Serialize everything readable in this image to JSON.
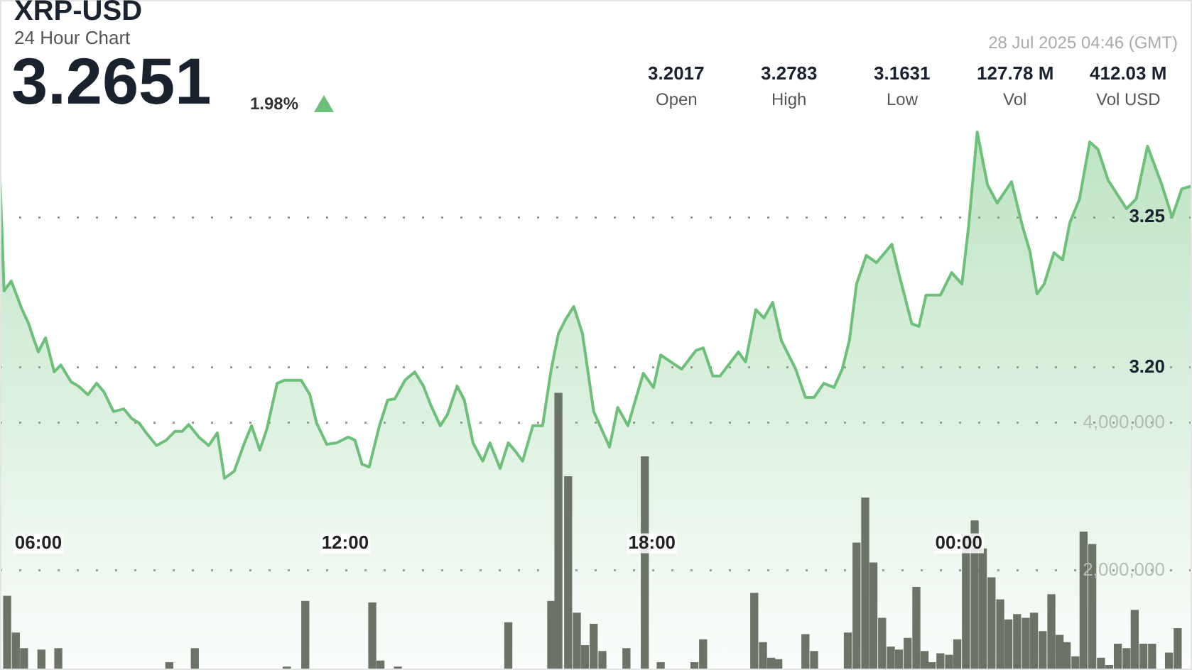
{
  "chart_data": {
    "type": "area",
    "title": "XRP-USD",
    "subtitle": "24 Hour Chart",
    "annotations": [
      "3.2651",
      "1.98%",
      "28 Jul 2025 04:46 (GMT)",
      "3.2017",
      "Open",
      "3.2783",
      "High",
      "3.1631",
      "Low",
      "127.78 M",
      "Vol",
      "412.03 M",
      "Vol USD"
    ],
    "x": [
      5.25,
      5.33,
      5.47,
      5.67,
      5.81,
      5.92,
      6.0,
      6.14,
      6.31,
      6.44,
      6.64,
      6.78,
      6.97,
      7.14,
      7.28,
      7.47,
      7.67,
      7.83,
      7.97,
      8.11,
      8.31,
      8.5,
      8.67,
      8.81,
      8.94,
      9.14,
      9.33,
      9.5,
      9.64,
      9.83,
      10.03,
      10.17,
      10.33,
      10.47,
      10.67,
      10.81,
      11.14,
      11.31,
      11.44,
      11.64,
      11.83,
      12.06,
      12.19,
      12.33,
      12.47,
      12.67,
      12.83,
      12.97,
      13.17,
      13.36,
      13.53,
      13.67,
      13.86,
      14.0,
      14.19,
      14.33,
      14.5,
      14.69,
      14.83,
      15.03,
      15.19,
      15.33,
      15.47,
      15.67,
      15.86,
      16.03,
      16.17,
      16.31,
      16.47,
      16.64,
      16.86,
      17.17,
      17.33,
      17.53,
      17.83,
      18.03,
      18.17,
      18.58,
      18.86,
      19.0,
      19.19,
      19.33,
      19.69,
      19.83,
      20.03,
      20.19,
      20.36,
      20.53,
      20.81,
      21.0,
      21.17,
      21.36,
      21.56,
      21.72,
      21.86,
      22.0,
      22.19,
      22.39,
      22.69,
      22.83,
      23.08,
      23.22,
      23.36,
      23.64,
      23.86,
      24.06,
      24.19,
      24.36,
      24.56,
      24.75,
      25.03,
      25.25,
      25.39,
      25.53,
      25.67,
      25.86,
      26.03,
      26.17,
      26.36,
      26.56,
      26.72,
      26.92,
      27.28,
      27.47,
      27.69,
      27.97,
      28.17,
      28.36,
      28.56
    ],
    "xlim": [
      5.25,
      28.56
    ],
    "xticks": [
      {
        "value": 6,
        "label": "06:00"
      },
      {
        "value": 12,
        "label": "12:00"
      },
      {
        "value": 18,
        "label": "18:00"
      },
      {
        "value": 24,
        "label": "00:00"
      }
    ],
    "ylim": [
      3.0995,
      3.3222
    ],
    "yticks": [
      {
        "value": 3.2,
        "label": "3.20"
      },
      {
        "value": 3.25,
        "label": "3.25"
      }
    ],
    "y2lim": [
      650000,
      9730000
    ],
    "y2ticks": [
      {
        "value": 2000000,
        "label": "2,000,000"
      },
      {
        "value": 4000000,
        "label": "4,000,000"
      }
    ],
    "grid": "y",
    "legend": false,
    "marker": "none",
    "line_style": "solid",
    "series": [
      {
        "color": "#6cc07a",
        "values": [
          3.263,
          3.2255,
          3.2288,
          3.2198,
          3.2146,
          3.209,
          3.2052,
          3.2099,
          3.1986,
          3.2009,
          3.1953,
          3.1939,
          3.191,
          3.1948,
          3.192,
          3.1854,
          3.1863,
          3.183,
          3.1816,
          3.1783,
          3.1741,
          3.1759,
          3.1788,
          3.1788,
          3.1811,
          3.1769,
          3.1741,
          3.1783,
          3.1632,
          3.1656,
          3.175,
          3.1807,
          3.1726,
          3.1797,
          3.1948,
          3.1958,
          3.1958,
          3.191,
          3.1816,
          3.1745,
          3.175,
          3.1769,
          3.1759,
          3.1679,
          3.167,
          3.1807,
          3.1892,
          3.1896,
          3.1958,
          3.1986,
          3.1939,
          3.1877,
          3.1807,
          3.1844,
          3.1939,
          3.1892,
          3.175,
          3.1689,
          3.175,
          3.1665,
          3.175,
          3.1722,
          3.1689,
          3.1807,
          3.1807,
          3.1995,
          3.2113,
          3.216,
          3.2203,
          3.2113,
          3.1854,
          3.1736,
          3.1868,
          3.1807,
          3.1981,
          3.1934,
          3.2042,
          3.1995,
          3.2057,
          3.2066,
          3.1972,
          3.1972,
          3.2052,
          3.2019,
          3.2193,
          3.2165,
          3.2217,
          3.209,
          3.1995,
          3.1901,
          3.1901,
          3.1948,
          3.1934,
          3.1995,
          3.209,
          3.2278,
          3.2373,
          3.2349,
          3.241,
          3.2311,
          3.2146,
          3.2137,
          3.2241,
          3.2241,
          3.2316,
          3.2278,
          3.2467,
          3.2783,
          3.2608,
          3.2547,
          3.2618,
          3.2467,
          3.2387,
          3.2245,
          3.2278,
          3.2382,
          3.2358,
          3.2481,
          3.2561,
          3.275,
          3.2726,
          3.2623,
          3.2528,
          3.2561,
          3.2736,
          3.2608,
          3.25,
          3.2594,
          3.2604
        ]
      },
      {
        "type": "bar",
        "axis": "y2",
        "color": "#6b7366",
        "x": [
          5.39,
          5.56,
          5.72,
          6.06,
          6.39,
          8.56,
          9.06,
          10.86,
          11.22,
          12.53,
          12.69,
          13.03,
          15.19,
          16.03,
          16.17,
          16.36,
          16.53,
          16.69,
          16.86,
          17.03,
          17.5,
          17.86,
          18.17,
          18.83,
          19.0,
          20.0,
          20.17,
          20.33,
          20.47,
          21.0,
          21.17,
          21.83,
          22.0,
          22.17,
          22.33,
          22.5,
          22.67,
          22.83,
          23.0,
          23.17,
          23.33,
          23.47,
          23.64,
          23.81,
          23.97,
          24.14,
          24.31,
          24.47,
          24.64,
          24.81,
          24.97,
          25.14,
          25.31,
          25.47,
          25.64,
          25.81,
          25.97,
          26.11,
          26.28,
          26.44,
          26.61,
          26.78,
          26.94,
          27.11,
          27.28,
          27.44,
          27.61,
          27.78,
          28.11,
          28.28
        ],
        "values": [
          1650000,
          1150000,
          940000,
          920000,
          940000,
          750000,
          940000,
          690000,
          1580000,
          1560000,
          770000,
          690000,
          1290000,
          1580000,
          4400000,
          3270000,
          1420000,
          980000,
          1270000,
          900000,
          940000,
          3540000,
          750000,
          750000,
          1060000,
          1690000,
          1020000,
          810000,
          790000,
          1130000,
          900000,
          1150000,
          2370000,
          2980000,
          2100000,
          1350000,
          960000,
          920000,
          1080000,
          1770000,
          900000,
          750000,
          870000,
          850000,
          1060000,
          2480000,
          2670000,
          2290000,
          1900000,
          1600000,
          1330000,
          1400000,
          1350000,
          1420000,
          1170000,
          1670000,
          1120000,
          1020000,
          830000,
          2520000,
          2350000,
          810000,
          710000,
          1000000,
          940000,
          1460000,
          1000000,
          1000000,
          880000,
          1210000
        ]
      }
    ]
  }
}
